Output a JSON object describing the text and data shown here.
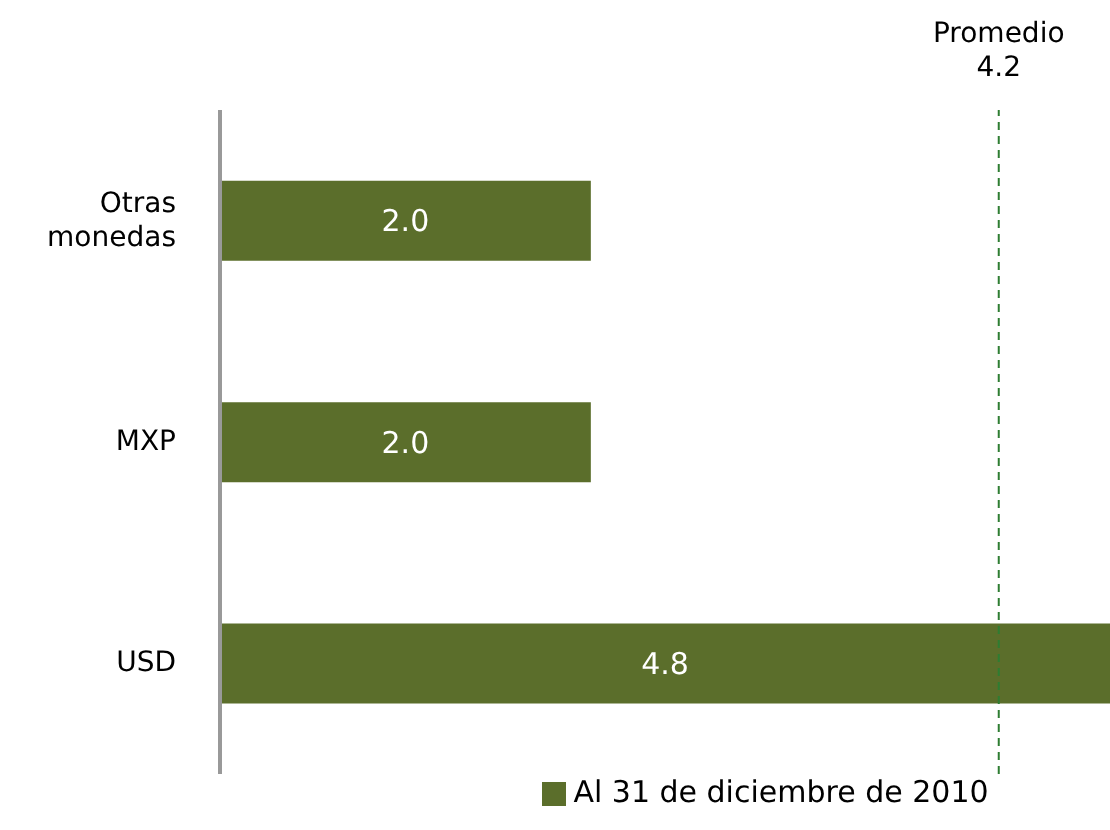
{
  "chart_data": {
    "type": "bar",
    "orientation": "horizontal",
    "categories": [
      "Otras monedas",
      "MXP",
      "USD"
    ],
    "series": [
      {
        "name": "Al 31 de diciembre de 2010",
        "color": "#5b6e2b",
        "values": [
          2.0,
          2.0,
          4.8
        ],
        "value_labels": [
          "2.0",
          "2.0",
          "4.8"
        ]
      }
    ],
    "xlim": [
      0,
      4.8
    ],
    "tick_labels": "y",
    "legend": "bottom",
    "grid": false,
    "ref_lines": [
      {
        "axis": "x",
        "value": 4.2,
        "label": "Promedio 4.2",
        "color": "#2e7d32",
        "line_style": "dashed"
      }
    ]
  }
}
